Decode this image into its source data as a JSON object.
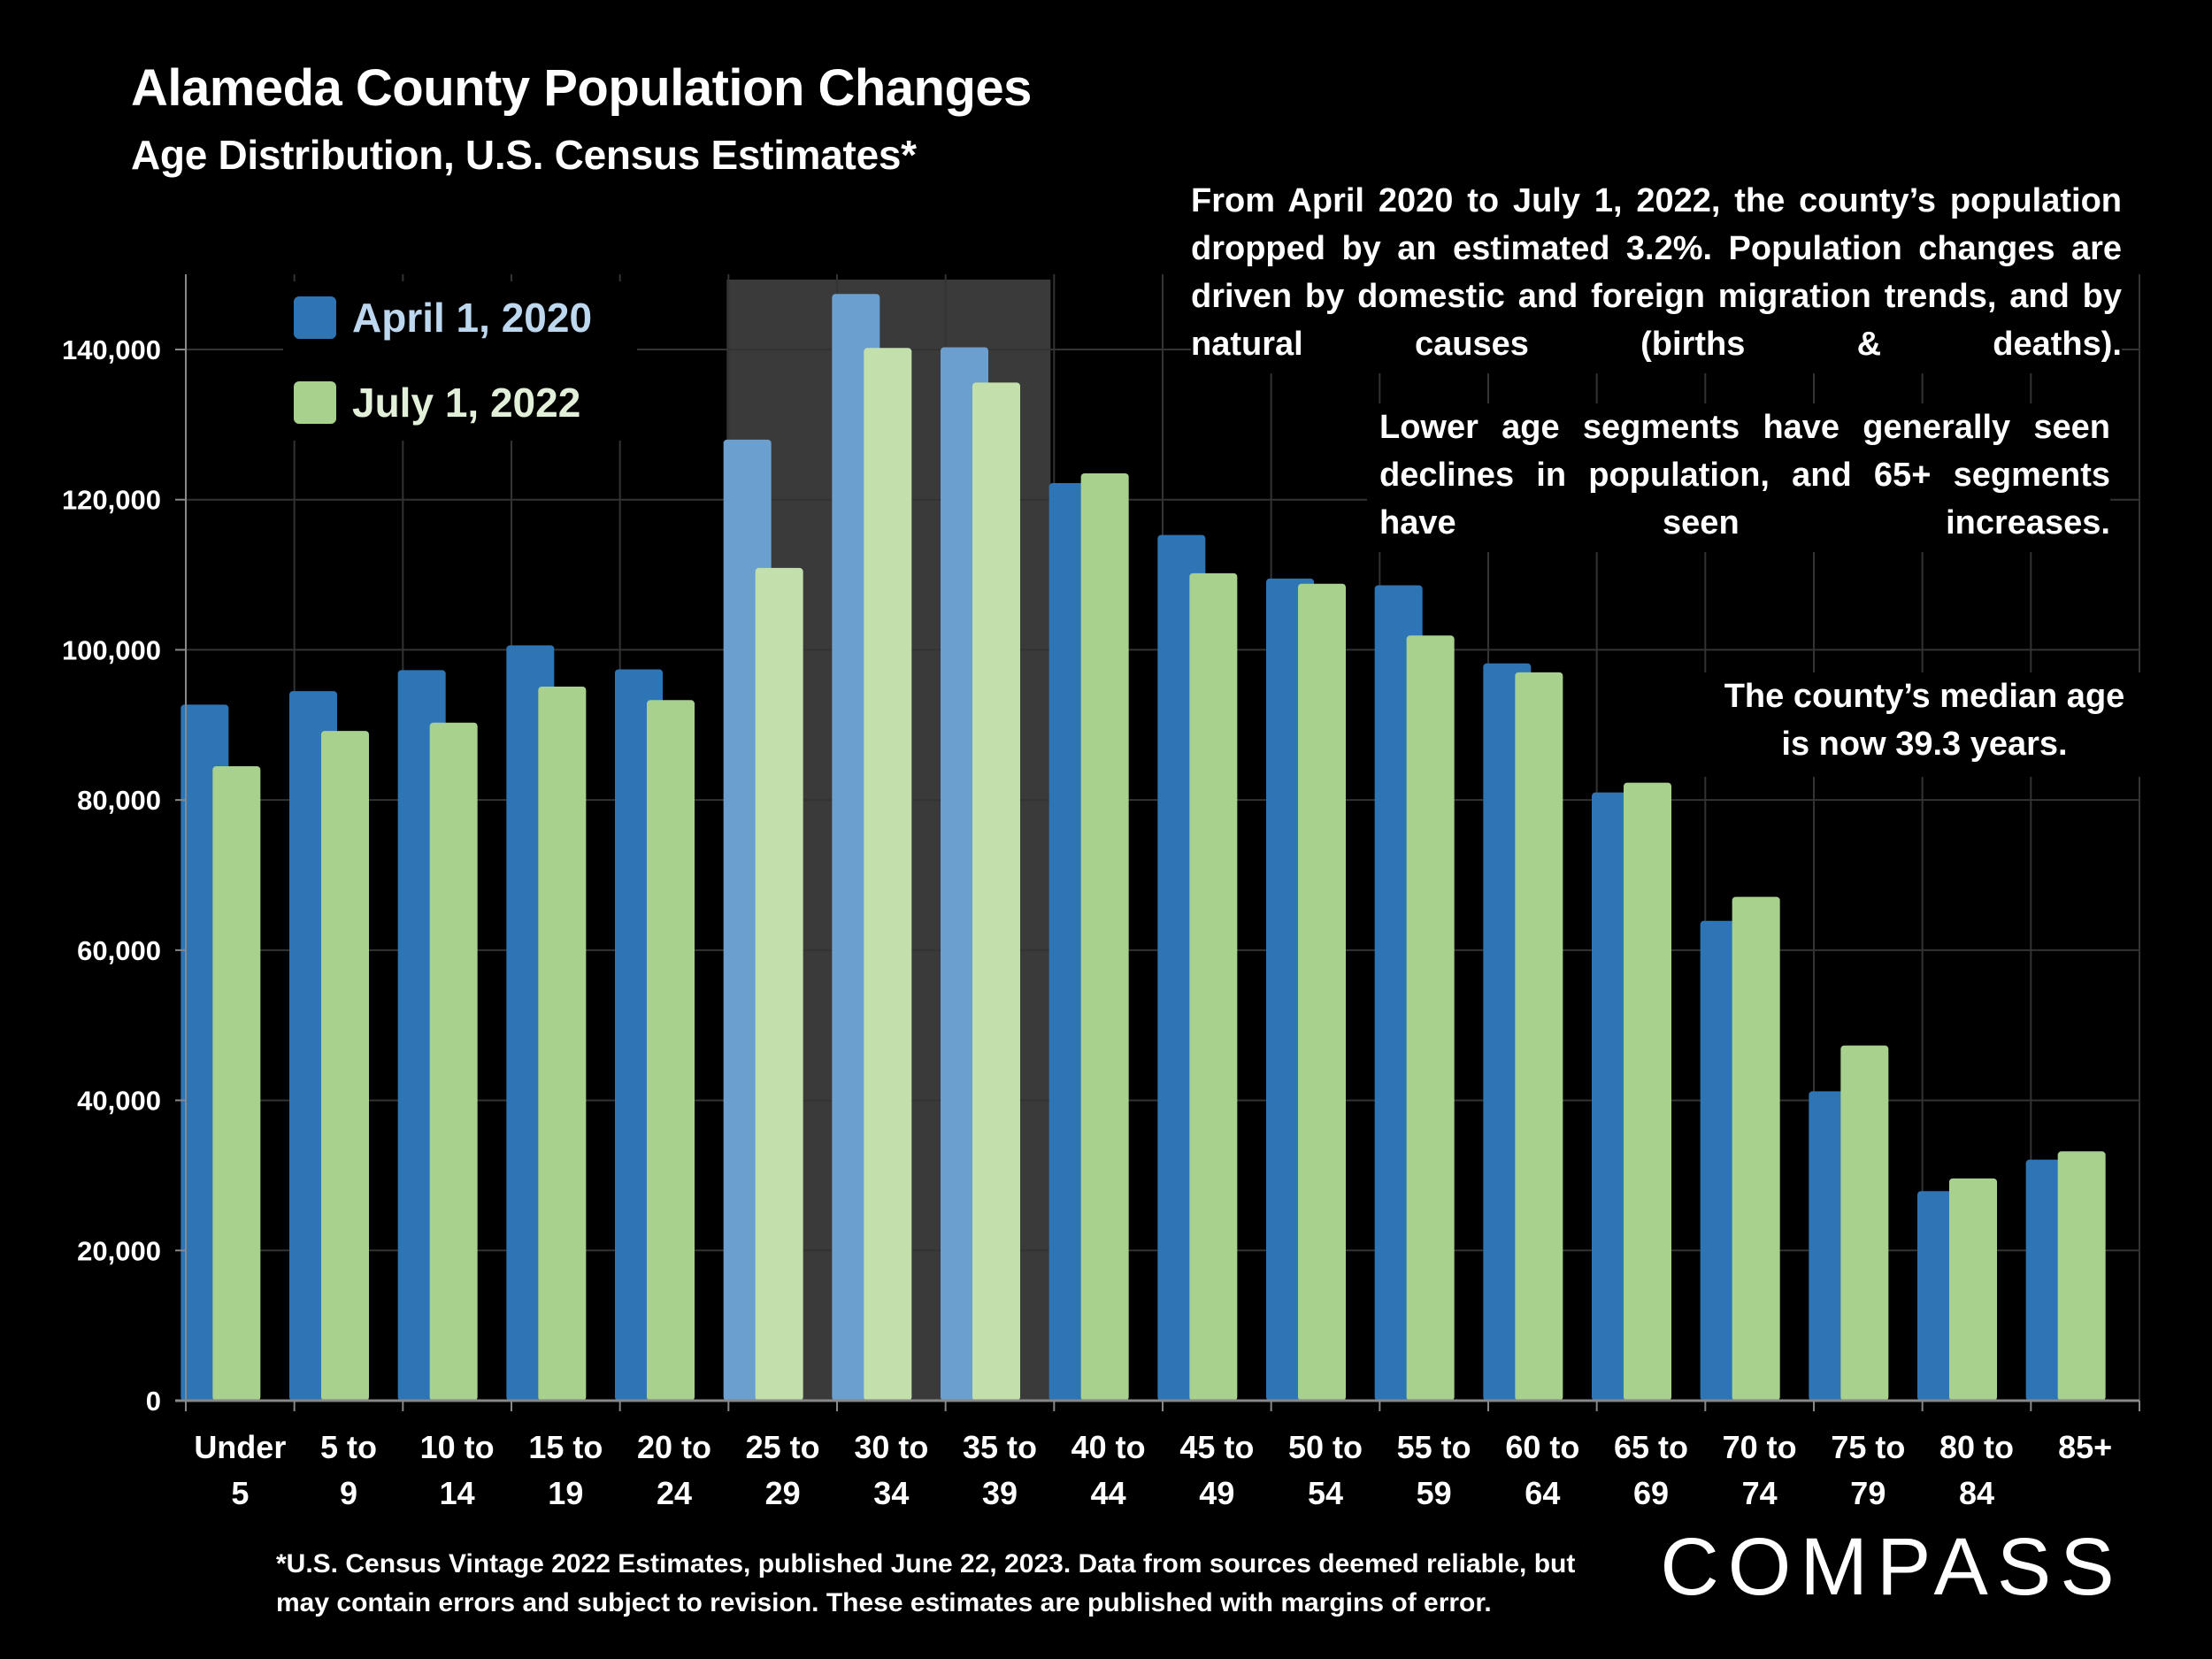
{
  "title": "Alameda County Population Changes",
  "subtitle": "Age Distribution, U.S. Census Estimates*",
  "annotations": {
    "a1": "From April 2020 to July 1, 2022, the county’s population dropped by an estimated 3.2%. Population changes are driven by domestic and foreign migration trends, and by natural causes (births & deaths).",
    "a2": "Lower age segments have generally seen declines in population, and 65+ segments have seen increases.",
    "a3_line1": "The county’s median age",
    "a3_line2": "is now 39.3 years."
  },
  "footnote": {
    "line1": "*U.S. Census Vintage 2022 Estimates, published June 22, 2023. Data from sources deemed reliable, but",
    "line2": "may contain errors and subject to revision. These estimates are published with margins of error."
  },
  "logo_text": "COMPASS",
  "colors": {
    "series1": "#2e75b6",
    "series2": "#a9d18e",
    "series1_highlight": "#6a9fd0",
    "series2_highlight": "#c2dfac",
    "highlight_band": "#3a3a3a",
    "grid": "#333333"
  },
  "chart_data": {
    "type": "bar",
    "title": "Alameda County Population Changes",
    "subtitle": "Age Distribution, U.S. Census Estimates*",
    "categories": [
      [
        "Under",
        "5"
      ],
      [
        "5 to",
        "9"
      ],
      [
        "10 to",
        "14"
      ],
      [
        "15 to",
        "19"
      ],
      [
        "20 to",
        "24"
      ],
      [
        "25 to",
        "29"
      ],
      [
        "30 to",
        "34"
      ],
      [
        "35 to",
        "39"
      ],
      [
        "40 to",
        "44"
      ],
      [
        "45 to",
        "49"
      ],
      [
        "50 to",
        "54"
      ],
      [
        "55 to",
        "59"
      ],
      [
        "60 to",
        "64"
      ],
      [
        "65 to",
        "69"
      ],
      [
        "70 to",
        "74"
      ],
      [
        "75 to",
        "79"
      ],
      [
        "80 to",
        "84"
      ],
      [
        "85+",
        ""
      ]
    ],
    "series": [
      {
        "name": "April 1, 2020",
        "values": [
          92700,
          94500,
          97300,
          100600,
          97400,
          128000,
          147400,
          140300,
          122200,
          115300,
          109500,
          108600,
          98200,
          81000,
          63900,
          41200,
          27900,
          32100
        ]
      },
      {
        "name": "July 1, 2022",
        "values": [
          84500,
          89200,
          90300,
          95100,
          93300,
          110900,
          140200,
          135600,
          123500,
          110200,
          108800,
          101900,
          97000,
          82300,
          67100,
          47300,
          29600,
          33200
        ]
      }
    ],
    "highlighted_categories": [
      5,
      6,
      7
    ],
    "ylim": [
      0,
      150000
    ],
    "yticks": [
      0,
      20000,
      40000,
      60000,
      80000,
      100000,
      120000,
      140000
    ],
    "ytick_labels": [
      "0",
      "20,000",
      "40,000",
      "60,000",
      "80,000",
      "100,000",
      "120,000",
      "140,000"
    ],
    "grid": true,
    "legend_position": "top-left"
  }
}
